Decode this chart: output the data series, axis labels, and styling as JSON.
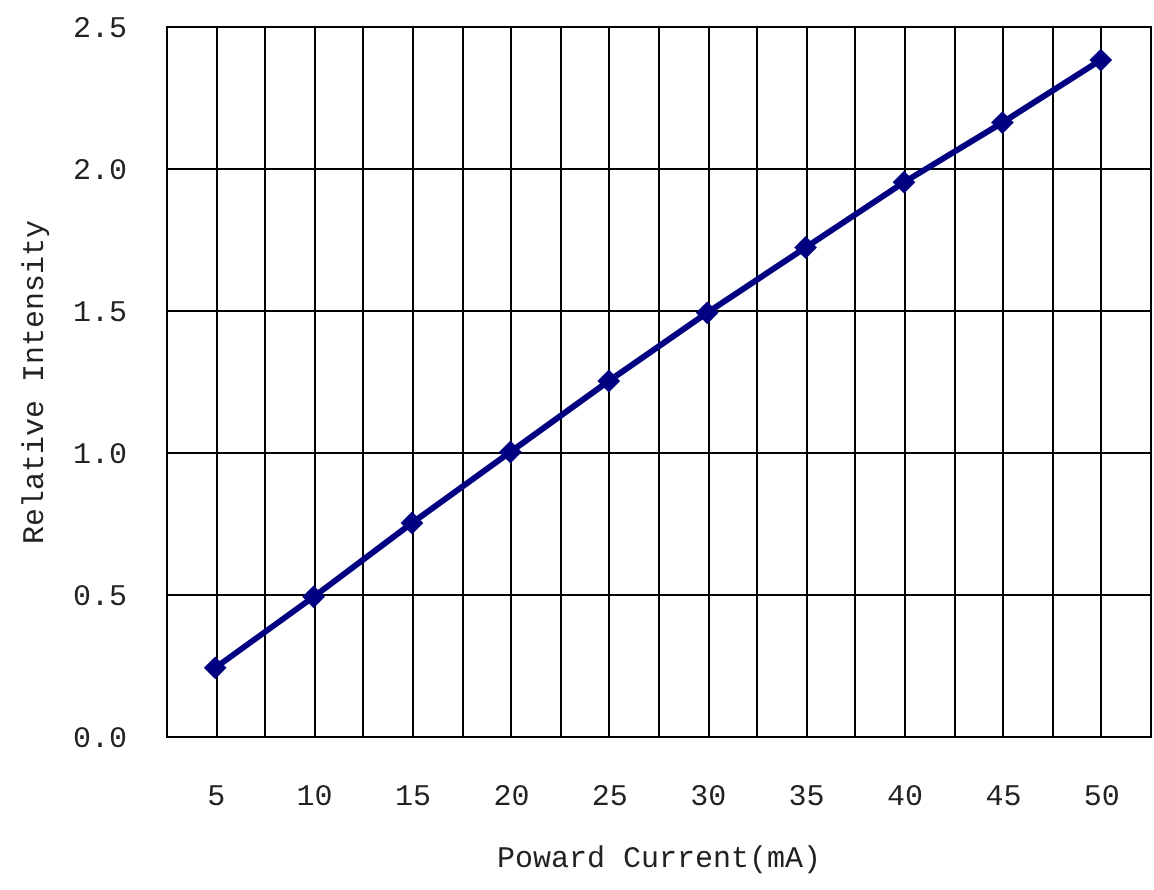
{
  "chart_data": {
    "type": "line",
    "xlabel": "Poward Current(mA)",
    "ylabel": "Relative Intensity",
    "x": [
      5,
      10,
      15,
      20,
      25,
      30,
      35,
      40,
      45,
      50
    ],
    "series": [
      {
        "color": "#000080",
        "values": [
          0.24,
          0.49,
          0.75,
          1.0,
          1.25,
          1.49,
          1.72,
          1.95,
          2.16,
          2.38
        ]
      }
    ],
    "xlim": [
      2.5,
      52.5
    ],
    "xticks": [
      5,
      {
        "value": 7.5,
        "label": null
      },
      10,
      {
        "value": 12.5,
        "label": null
      },
      15,
      {
        "value": 17.5,
        "label": null
      },
      20,
      {
        "value": 22.5,
        "label": null
      },
      25,
      {
        "value": 27.5,
        "label": null
      },
      30,
      {
        "value": 32.5,
        "label": null
      },
      35,
      {
        "value": 37.5,
        "label": null
      },
      40,
      {
        "value": 42.5,
        "label": null
      },
      45,
      {
        "value": 47.5,
        "label": null
      },
      50
    ],
    "ylim": [
      0,
      2.5
    ],
    "yticks": [
      {
        "value": 0,
        "label": "0.0"
      },
      0.5,
      {
        "value": 1,
        "label": "1.0"
      },
      1.5,
      {
        "value": 2,
        "label": "2.0"
      },
      2.5
    ],
    "grid": true,
    "marker": "diamond",
    "line_style": "solid"
  }
}
